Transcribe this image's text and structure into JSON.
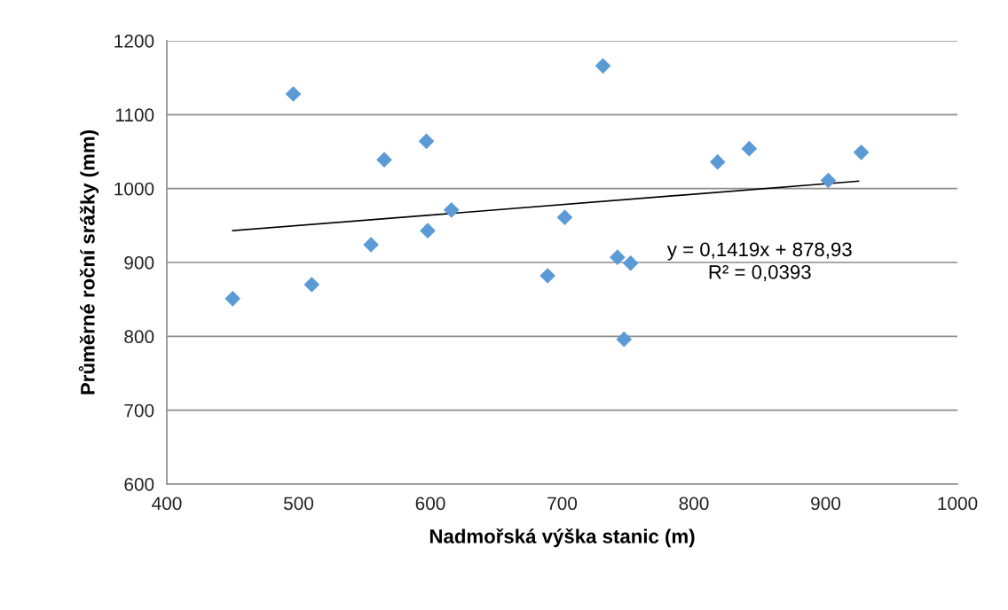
{
  "chart_data": {
    "type": "scatter",
    "xlabel": "Nadmořská výška stanic (m)",
    "ylabel": "Průměrné roční srážky (mm)",
    "series": [
      {
        "color": "#5b9bd5",
        "marker": "diamond",
        "x": [
          450,
          496,
          510,
          555,
          565,
          597,
          598,
          616,
          689,
          702,
          731,
          742,
          747,
          752,
          818,
          842,
          902,
          927
        ],
        "values": [
          851,
          1128,
          870,
          924,
          1039,
          1064,
          943,
          971,
          882,
          961,
          1166,
          907,
          796,
          899,
          1036,
          1054,
          1011,
          1049
        ]
      },
      {
        "type": "line",
        "color": "#000000",
        "marker": "none",
        "x": [
          450,
          925
        ],
        "values": [
          943,
          1010
        ]
      }
    ],
    "xlim": [
      400,
      1000
    ],
    "xticks": [
      400,
      500,
      600,
      700,
      800,
      900,
      1000
    ],
    "ylim": [
      600,
      1200
    ],
    "yticks": [
      600,
      700,
      800,
      900,
      1000,
      1100,
      1200
    ],
    "grid": "y",
    "legend": false,
    "annotations": [
      "y = 0,1419x + 878,93\nR² = 0,0393"
    ]
  }
}
